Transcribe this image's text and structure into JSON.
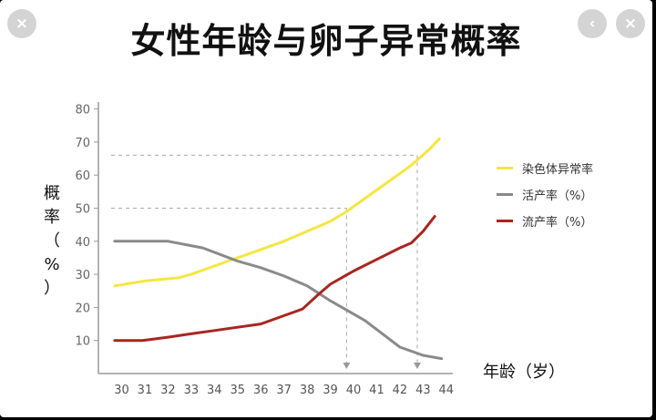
{
  "window": {
    "close_icon": "×",
    "back_icon": "‹",
    "close_icon_right": "×"
  },
  "title": "女性年龄与卵子异常概率",
  "chart_data": {
    "type": "line",
    "title": "女性年龄与卵子异常概率",
    "xlabel": "年龄（岁）",
    "ylabel": "概率（%）",
    "ylabel_lines": [
      "概",
      "率",
      "（",
      "%",
      "）"
    ],
    "x": [
      30,
      31,
      32,
      33,
      34,
      35,
      36,
      37,
      38,
      39,
      40,
      41,
      42,
      43,
      44
    ],
    "x_ticks": [
      "30",
      "31",
      "32",
      "33",
      "34",
      "35",
      "36",
      "37",
      "38",
      "39",
      "40",
      "41",
      "42",
      "43",
      "44"
    ],
    "y_ticks": [
      "10",
      "20",
      "30",
      "40",
      "50",
      "60",
      "70",
      "80"
    ],
    "xlim": [
      29.5,
      44.5
    ],
    "ylim": [
      0,
      82
    ],
    "grid": false,
    "legend_position": "right",
    "series": [
      {
        "name": "染色体异常率",
        "color": "#f5e642",
        "points": [
          [
            29.7,
            26.5
          ],
          [
            31,
            28
          ],
          [
            32.5,
            29
          ],
          [
            33,
            30
          ],
          [
            34,
            32.5
          ],
          [
            35,
            35
          ],
          [
            36,
            37.5
          ],
          [
            37,
            40
          ],
          [
            38,
            43
          ],
          [
            39,
            46
          ],
          [
            39.7,
            49
          ],
          [
            40.5,
            53
          ],
          [
            41.5,
            58
          ],
          [
            42.5,
            63
          ],
          [
            43.3,
            68
          ],
          [
            43.7,
            71
          ]
        ]
      },
      {
        "name": "活产率（%）",
        "color": "#8a8a8a",
        "points": [
          [
            29.7,
            40
          ],
          [
            32,
            40
          ],
          [
            33.5,
            38
          ],
          [
            35,
            34
          ],
          [
            36,
            32
          ],
          [
            37,
            29.5
          ],
          [
            38,
            26.5
          ],
          [
            39,
            22
          ],
          [
            40.5,
            16
          ],
          [
            42,
            8
          ],
          [
            43,
            5.5
          ],
          [
            43.8,
            4.5
          ]
        ]
      },
      {
        "name": "流产率（%）",
        "color": "#a8261f",
        "points": [
          [
            29.7,
            10
          ],
          [
            30.9,
            10
          ],
          [
            32,
            11
          ],
          [
            33,
            12
          ],
          [
            34,
            13
          ],
          [
            35,
            14
          ],
          [
            36,
            15
          ],
          [
            37,
            17.5
          ],
          [
            37.8,
            19.5
          ],
          [
            38.5,
            24
          ],
          [
            39,
            27
          ],
          [
            40,
            31
          ],
          [
            41,
            34.5
          ],
          [
            42,
            38
          ],
          [
            42.5,
            39.5
          ],
          [
            43,
            43
          ],
          [
            43.5,
            47.5
          ]
        ]
      }
    ],
    "reference_lines": [
      {
        "y": 66,
        "x": 42.75
      },
      {
        "y": 50,
        "x": 39.7
      }
    ]
  }
}
